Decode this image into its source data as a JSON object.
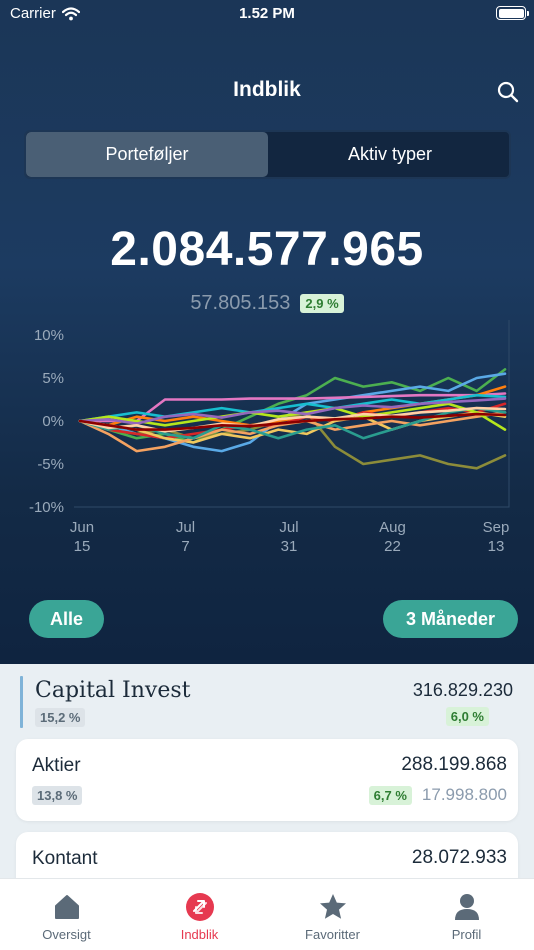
{
  "status_bar": {
    "carrier": "Carrier",
    "time": "1.52 PM"
  },
  "header": {
    "title": "Indblik"
  },
  "segments": [
    {
      "label": "Porteføljer",
      "active": true
    },
    {
      "label": "Aktiv typer",
      "active": false
    }
  ],
  "summary": {
    "total": "2.084.577.965",
    "change_amount": "57.805.153",
    "change_pct": "2,9 %"
  },
  "chart_data": {
    "type": "line",
    "x_labels": [
      [
        "Jun",
        "15"
      ],
      [
        "Jul",
        "7"
      ],
      [
        "Jul",
        "31"
      ],
      [
        "Aug",
        "22"
      ],
      [
        "Sep",
        "13"
      ]
    ],
    "y_ticks": [
      "10%",
      "5%",
      "0%",
      "-5%",
      "-10%"
    ],
    "ylim": [
      -10,
      10
    ],
    "grid": false,
    "series": [
      {
        "color": "#4caf50",
        "values": [
          0,
          -1.0,
          -2.0,
          -1.5,
          -2.5,
          -1.0,
          0.5,
          2.0,
          3.0,
          5.0,
          4.0,
          4.5,
          3.5,
          5.0,
          3.5,
          6.0
        ]
      },
      {
        "color": "#5aa9e6",
        "values": [
          0,
          -0.5,
          -1.5,
          -2.0,
          -3.0,
          -3.5,
          -2.5,
          0.0,
          2.0,
          2.5,
          3.0,
          3.5,
          4.0,
          3.5,
          5.0,
          5.5
        ]
      },
      {
        "color": "#e377c2",
        "values": [
          0,
          0,
          0,
          2.5,
          2.5,
          2.5,
          2.6,
          2.6,
          2.6,
          2.7,
          2.8,
          2.9,
          3.0,
          3.0,
          3.0,
          3.2
        ]
      },
      {
        "color": "#8c8c3a",
        "values": [
          0,
          -1.0,
          -1.5,
          -1.0,
          -2.0,
          -1.5,
          -1.0,
          0.0,
          1.0,
          -3.0,
          -5.0,
          -4.5,
          -4.0,
          -5.0,
          -5.5,
          -4.0
        ]
      },
      {
        "color": "#ff7f0e",
        "values": [
          0,
          -0.5,
          0.5,
          0.0,
          0.5,
          0.0,
          -0.5,
          0.0,
          0.5,
          0.0,
          1.0,
          1.5,
          2.0,
          2.5,
          3.0,
          4.0
        ]
      },
      {
        "color": "#d62728",
        "values": [
          0,
          -1.0,
          -1.5,
          -2.0,
          -1.5,
          -1.0,
          -0.5,
          -0.5,
          0.5,
          0.0,
          1.0,
          0.5,
          1.0,
          1.5,
          1.0,
          2.0
        ]
      },
      {
        "color": "#f0c75e",
        "values": [
          0,
          -0.5,
          -1.0,
          -2.0,
          -2.5,
          -1.5,
          -2.0,
          -1.0,
          -1.5,
          0.0,
          0.5,
          -1.0,
          0.0,
          0.5,
          1.0,
          0.5
        ]
      },
      {
        "color": "#f4a261",
        "values": [
          0,
          -1.5,
          -3.5,
          -3.0,
          -2.0,
          -1.0,
          -1.5,
          -0.5,
          0.0,
          -1.0,
          -0.5,
          0.0,
          -0.5,
          0.0,
          0.5,
          1.0
        ]
      },
      {
        "color": "#17becf",
        "values": [
          0,
          0.5,
          1.0,
          0.5,
          1.0,
          1.5,
          1.0,
          1.5,
          2.0,
          1.5,
          2.0,
          2.5,
          2.0,
          2.5,
          3.0,
          2.8
        ]
      },
      {
        "color": "#2a9d8f",
        "values": [
          0,
          -1.0,
          -0.5,
          -1.5,
          -2.0,
          -0.5,
          -1.0,
          -2.0,
          -1.0,
          -0.5,
          -2.0,
          -1.0,
          0.0,
          1.0,
          1.5,
          1.0
        ]
      },
      {
        "color": "#b5e61d",
        "values": [
          0,
          0.5,
          0,
          -0.5,
          0.0,
          0.5,
          1.0,
          0.5,
          1.0,
          1.5,
          0.5,
          1.0,
          1.5,
          2.0,
          1.0,
          -1.0
        ]
      },
      {
        "color": "#9467bd",
        "values": [
          0,
          0.2,
          -0.3,
          0.5,
          0.8,
          0.4,
          1.0,
          1.2,
          0.8,
          1.5,
          1.8,
          1.6,
          2.0,
          2.2,
          2.4,
          2.6
        ]
      },
      {
        "color": "#ffd1a6",
        "values": [
          0,
          -0.8,
          -0.5,
          -1.2,
          -0.8,
          -0.3,
          -0.6,
          0.2,
          0.5,
          0.3,
          0.8,
          0.6,
          1.0,
          1.2,
          1.5,
          1.4
        ]
      },
      {
        "color": "#8b0000",
        "values": [
          0,
          -0.5,
          -1.0,
          -1.0,
          -0.8,
          -0.5,
          -0.6,
          -0.3,
          0.0,
          0.2,
          0.3,
          0.5,
          0.4,
          0.6,
          0.8,
          0.7
        ]
      }
    ]
  },
  "filters": {
    "all": "Alle",
    "period": "3 Måneder"
  },
  "group": {
    "name": "Capital Invest",
    "value": "316.829.230",
    "share": "15,2 %",
    "change": "6,0 %"
  },
  "cards": [
    {
      "name": "Aktier",
      "value": "288.199.868",
      "share": "13,8 %",
      "change": "6,7 %",
      "gain": "17.998.800"
    },
    {
      "name": "Kontant",
      "value": "28.072.933"
    }
  ],
  "tabs": [
    {
      "label": "Oversigt",
      "icon": "home-icon"
    },
    {
      "label": "Indblik",
      "icon": "insight-icon",
      "active": true
    },
    {
      "label": "Favoritter",
      "icon": "star-icon"
    },
    {
      "label": "Profil",
      "icon": "profile-icon"
    }
  ],
  "colors": {
    "accent": "#3aa596",
    "active_tab": "#e63950",
    "positive_bg": "#d8f2d8",
    "positive_text": "#2e7d32"
  }
}
